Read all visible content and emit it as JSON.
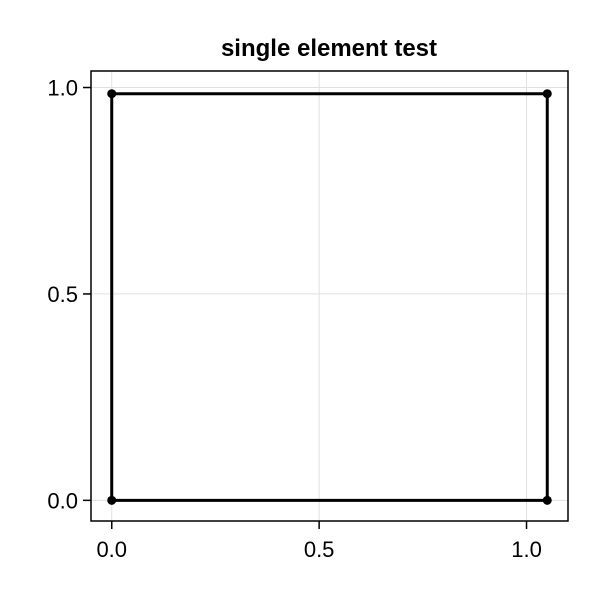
{
  "chart_data": {
    "type": "line",
    "title": "single element test",
    "xlabel": "",
    "ylabel": "",
    "xlim": [
      -0.05,
      1.1
    ],
    "ylim": [
      -0.05,
      1.04
    ],
    "grid": true,
    "x_ticks": [
      0.0,
      0.5,
      1.0
    ],
    "x_tick_labels": [
      "0.0",
      "0.5",
      "1.0"
    ],
    "y_ticks": [
      0.0,
      0.5,
      1.0
    ],
    "y_tick_labels": [
      "0.0",
      "0.5",
      "1.0"
    ],
    "series": [
      {
        "x": [
          0.0,
          1.05,
          1.05,
          0.0,
          0.0
        ],
        "y": [
          0.0,
          0.0,
          0.985,
          0.985,
          0.0
        ]
      }
    ],
    "points": [
      {
        "x": 0.0,
        "y": 0.0
      },
      {
        "x": 1.05,
        "y": 0.0
      },
      {
        "x": 1.05,
        "y": 0.985
      },
      {
        "x": 0.0,
        "y": 0.985
      }
    ],
    "colors": {
      "line": "#000000",
      "marker": "#000000",
      "grid": "#e0e0e0",
      "frame": "#000000"
    }
  }
}
